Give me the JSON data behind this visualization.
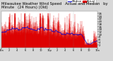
{
  "bg_color": "#d8d8d8",
  "plot_bg_color": "#ffffff",
  "bar_color": "#dd0000",
  "median_color": "#0000cc",
  "ylim": [
    0,
    28
  ],
  "yticks": [
    2,
    4,
    6,
    8,
    10,
    12,
    14,
    16,
    18,
    20,
    22,
    24,
    26
  ],
  "ytick_labels": [
    "2",
    "4",
    "6",
    "8",
    "10",
    "12",
    "14",
    "16",
    "18",
    "20",
    "22",
    "24",
    "26"
  ],
  "n_points": 1440,
  "vline_x": [
    360,
    720,
    1080
  ],
  "legend_labels": [
    "Median",
    "Actual"
  ],
  "legend_colors_line": [
    "#0000cc",
    "#dd0000"
  ],
  "title_fontsize": 3.8,
  "tick_fontsize": 2.8,
  "xtick_fontsize": 2.5,
  "legend_fontsize": 2.8,
  "xtick_positions": [
    0,
    120,
    240,
    360,
    480,
    600,
    720,
    840,
    960,
    1080,
    1200,
    1320,
    1439
  ],
  "xtick_labels": [
    "12a",
    "2",
    "4",
    "6",
    "8",
    "10",
    "12p",
    "2",
    "4",
    "6",
    "8",
    "10",
    "12a"
  ],
  "figsize": [
    1.6,
    0.87
  ],
  "dpi": 100
}
